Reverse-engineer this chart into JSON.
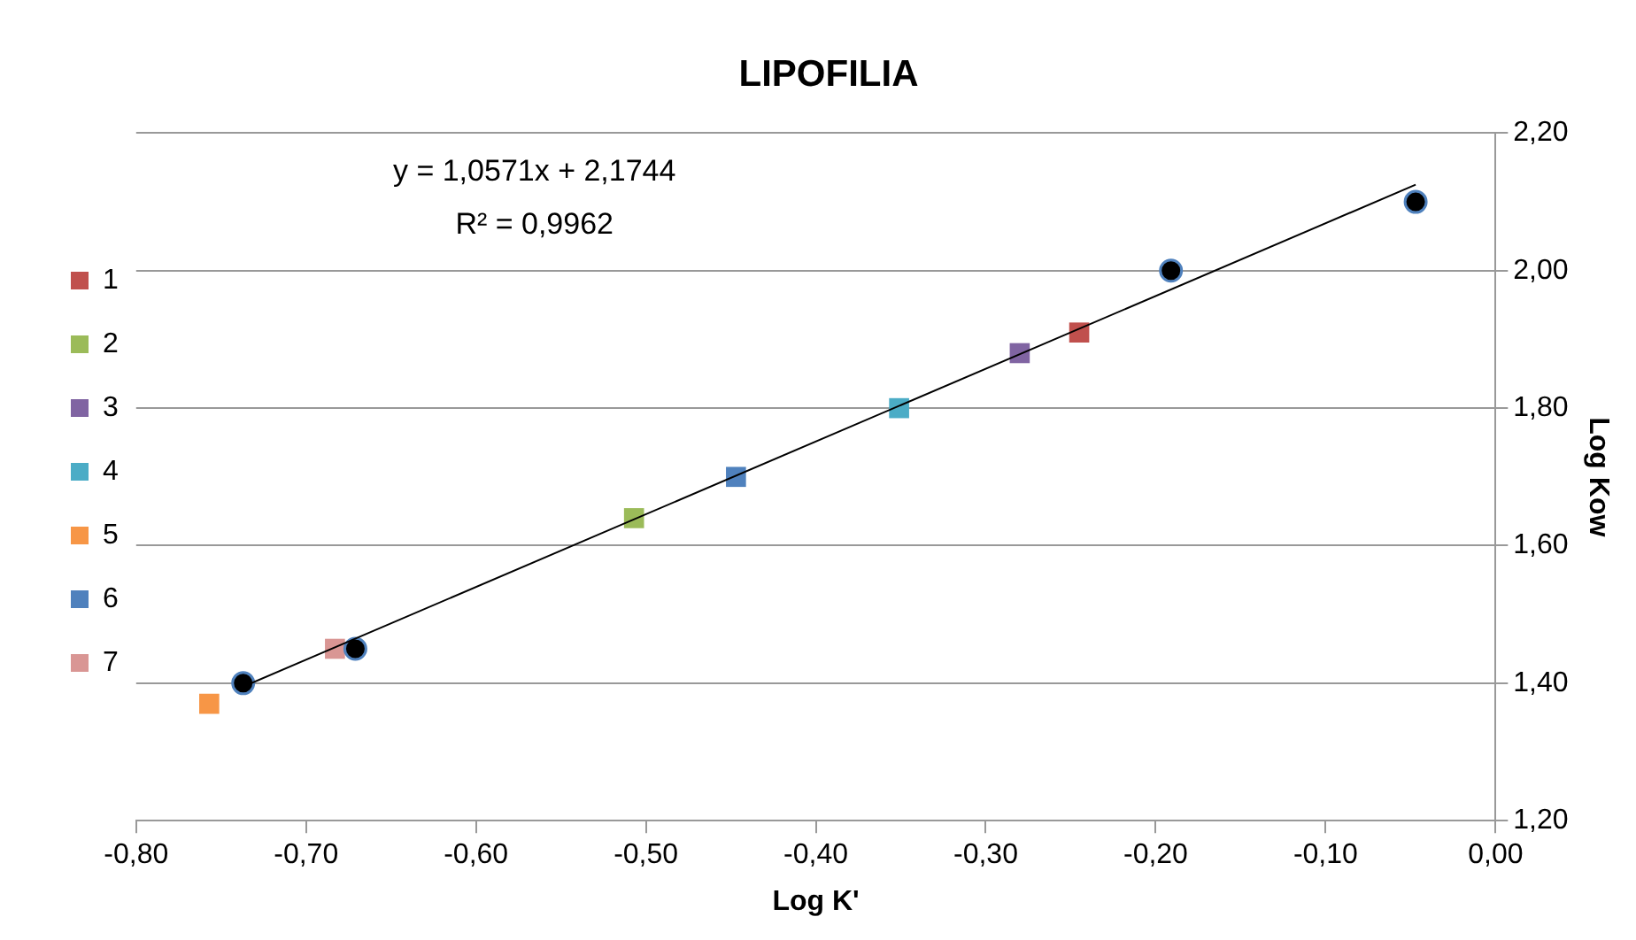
{
  "chart_data": {
    "type": "scatter",
    "title": "LIPOFILIA",
    "xlabel": "Log K'",
    "ylabel": "Log Kow",
    "annotations": [
      "y = 1,0571x + 2,1744",
      "R² = 0,9962"
    ],
    "xlim": [
      -0.8,
      0
    ],
    "xticks": [
      {
        "value": -0.8,
        "label": "-0,80"
      },
      {
        "value": -0.7,
        "label": "-0,70"
      },
      {
        "value": -0.6,
        "label": "-0,60"
      },
      {
        "value": -0.5,
        "label": "-0,50"
      },
      {
        "value": -0.4,
        "label": "-0,40"
      },
      {
        "value": -0.3,
        "label": "-0,30"
      },
      {
        "value": -0.2,
        "label": "-0,20"
      },
      {
        "value": -0.1,
        "label": "-0,10"
      },
      {
        "value": 0,
        "label": "0,00"
      }
    ],
    "ylim": [
      1.2,
      2.2
    ],
    "yticks": [
      {
        "value": 1.2,
        "label": "1,20"
      },
      {
        "value": 1.4,
        "label": "1,40"
      },
      {
        "value": 1.6,
        "label": "1,60"
      },
      {
        "value": 1.8,
        "label": "1,80"
      },
      {
        "value": 2.0,
        "label": "2,00"
      },
      {
        "value": 2.2,
        "label": "2,20"
      }
    ],
    "grid": "y",
    "legend": "left",
    "series": [
      {
        "color": "#000000",
        "marker": "circle",
        "x": [
          -0.737,
          -0.671,
          -0.191,
          -0.047
        ],
        "values": [
          1.4,
          1.45,
          2.0,
          2.1
        ]
      },
      {
        "type": "line",
        "color": "#000000",
        "marker": "none",
        "x": [
          -0.737,
          -0.047
        ],
        "values": [
          1.395,
          2.125
        ]
      },
      {
        "name": "1",
        "color": "#c0504d",
        "marker": "square",
        "x": [
          -0.245
        ],
        "values": [
          1.91
        ]
      },
      {
        "name": "2",
        "color": "#9bbb59",
        "marker": "square",
        "x": [
          -0.507
        ],
        "values": [
          1.64
        ]
      },
      {
        "name": "3",
        "color": "#8064a2",
        "marker": "square",
        "x": [
          -0.28
        ],
        "values": [
          1.88
        ]
      },
      {
        "name": "4",
        "color": "#4bacc6",
        "marker": "square",
        "x": [
          -0.351
        ],
        "values": [
          1.8
        ]
      },
      {
        "name": "5",
        "color": "#f79646",
        "marker": "square",
        "x": [
          -0.757
        ],
        "values": [
          1.37
        ]
      },
      {
        "name": "6",
        "color": "#4f81bd",
        "marker": "square",
        "x": [
          -0.447
        ],
        "values": [
          1.7
        ]
      },
      {
        "name": "7",
        "color": "#d99694",
        "marker": "square",
        "x": [
          -0.683
        ],
        "values": [
          1.45
        ]
      }
    ]
  }
}
